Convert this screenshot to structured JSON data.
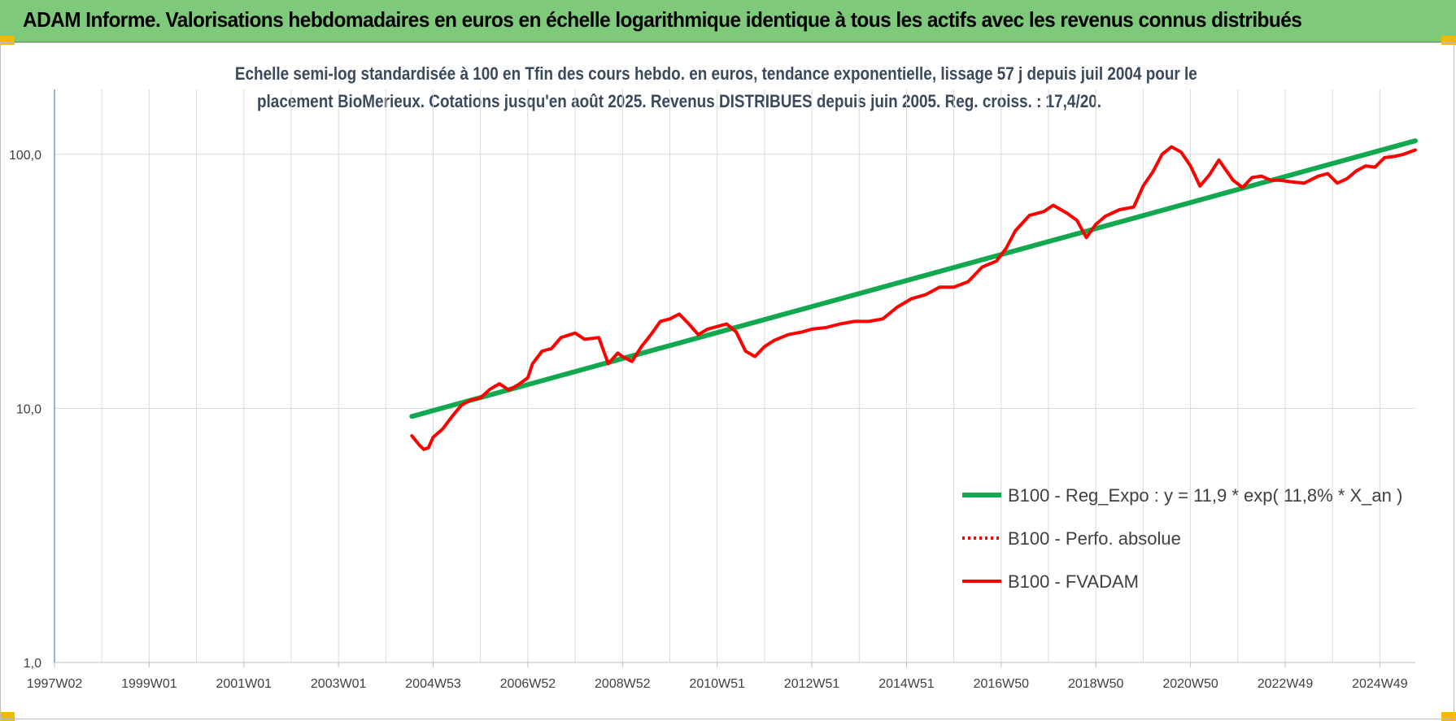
{
  "header": {
    "title": "ADAM Informe. Valorisations hebdomadaires en euros en échelle logarithmique identique à tous les actifs avec les revenus connus distribués"
  },
  "colors": {
    "banner": "#7fc97a",
    "trend": "#11a84f",
    "fvadam": "#ff0000",
    "perf": "#ff0000",
    "grid": "#d9d9d9",
    "axis": "#4f81bd"
  },
  "chart_data": {
    "type": "line",
    "title_lines": [
      "Echelle semi-log standardisée à 100 en Tfin des cours hebdo. en euros, tendance exponentielle, lissage 57 j depuis juil 2004 pour le",
      "placement BioMerieux. Cotations jusqu'en août 2025. Revenus DISTRIBUES depuis juin 2005. Reg. croiss. : 17,4/20."
    ],
    "y_scale": "log",
    "ylim": [
      1,
      180
    ],
    "xlim": [
      1997.0,
      2025.75
    ],
    "y_ticks": [
      {
        "value": 100,
        "label": "100,0"
      },
      {
        "value": 10,
        "label": "10,0"
      },
      {
        "value": 1,
        "label": "1,0"
      }
    ],
    "x_ticks": [
      {
        "x": 1997.0,
        "label": "1997W02"
      },
      {
        "x": 1999.0,
        "label": "1999W01"
      },
      {
        "x": 2001.0,
        "label": "2001W01"
      },
      {
        "x": 2003.0,
        "label": "2003W01"
      },
      {
        "x": 2005.0,
        "label": "2004W53"
      },
      {
        "x": 2007.0,
        "label": "2006W52"
      },
      {
        "x": 2009.0,
        "label": "2008W52"
      },
      {
        "x": 2011.0,
        "label": "2010W51"
      },
      {
        "x": 2013.0,
        "label": "2012W51"
      },
      {
        "x": 2015.0,
        "label": "2014W51"
      },
      {
        "x": 2017.0,
        "label": "2016W50"
      },
      {
        "x": 2019.0,
        "label": "2018W50"
      },
      {
        "x": 2021.0,
        "label": "2020W50"
      },
      {
        "x": 2023.0,
        "label": "2022W49"
      },
      {
        "x": 2025.0,
        "label": "2024W49"
      }
    ],
    "legend": {
      "position": "bottom-right"
    },
    "series": [
      {
        "name": "B100 - Reg_Expo : y = 11,9 * exp( 11,8% *  X_an )",
        "style": "solid-thick",
        "color": "#11a84f",
        "x": [
          2004.55,
          2025.75
        ],
        "y": [
          9.3,
          113
        ]
      },
      {
        "name": "B100 - Perfo. absolue",
        "style": "dotted",
        "color": "#ff0000",
        "x": [],
        "y": []
      },
      {
        "name": "B100 - FVADAM",
        "style": "solid",
        "color": "#ff0000",
        "x": [
          2004.55,
          2004.7,
          2004.8,
          2004.9,
          2005.0,
          2005.2,
          2005.4,
          2005.6,
          2005.8,
          2006.0,
          2006.2,
          2006.4,
          2006.6,
          2006.8,
          2007.0,
          2007.1,
          2007.3,
          2007.5,
          2007.7,
          2008.0,
          2008.2,
          2008.5,
          2008.7,
          2008.9,
          2009.0,
          2009.2,
          2009.4,
          2009.6,
          2009.8,
          2010.0,
          2010.2,
          2010.4,
          2010.6,
          2010.8,
          2011.0,
          2011.2,
          2011.4,
          2011.6,
          2011.8,
          2012.0,
          2012.2,
          2012.5,
          2012.8,
          2013.0,
          2013.3,
          2013.6,
          2013.9,
          2014.2,
          2014.5,
          2014.8,
          2015.1,
          2015.4,
          2015.7,
          2016.0,
          2016.3,
          2016.6,
          2016.9,
          2017.1,
          2017.3,
          2017.6,
          2017.9,
          2018.1,
          2018.4,
          2018.6,
          2018.8,
          2019.0,
          2019.2,
          2019.5,
          2019.8,
          2020.0,
          2020.2,
          2020.4,
          2020.6,
          2020.8,
          2021.0,
          2021.2,
          2021.4,
          2021.6,
          2021.9,
          2022.1,
          2022.3,
          2022.5,
          2022.7,
          2022.9,
          2023.1,
          2023.4,
          2023.7,
          2023.9,
          2024.1,
          2024.3,
          2024.5,
          2024.7,
          2024.9,
          2025.1,
          2025.3,
          2025.5,
          2025.75
        ],
        "y": [
          7.8,
          7.2,
          6.9,
          7.0,
          7.7,
          8.3,
          9.3,
          10.3,
          10.8,
          11.0,
          11.9,
          12.5,
          11.8,
          12.4,
          13.2,
          15.0,
          16.8,
          17.2,
          19.0,
          19.8,
          18.7,
          19.0,
          15.0,
          16.5,
          16.0,
          15.3,
          17.5,
          19.5,
          22.0,
          22.5,
          23.5,
          21.5,
          19.5,
          20.5,
          21.0,
          21.5,
          20.0,
          16.8,
          16.0,
          17.5,
          18.5,
          19.5,
          20.0,
          20.5,
          20.8,
          21.5,
          22.0,
          22.0,
          22.5,
          25.0,
          27.0,
          28.0,
          30.0,
          30.0,
          31.5,
          36.0,
          38.0,
          42.5,
          50.0,
          57.5,
          59.5,
          63.0,
          58.5,
          55.0,
          47.0,
          53.0,
          57.0,
          60.5,
          62.0,
          75.0,
          85.0,
          100.0,
          107.0,
          102.0,
          90.0,
          75.0,
          83.0,
          95.0,
          79.0,
          74.0,
          81.0,
          82.0,
          79.0,
          79.0,
          78.0,
          77.0,
          82.0,
          84.0,
          77.0,
          80.0,
          86.0,
          90.0,
          89.0,
          97.0,
          98.0,
          100.0,
          104.0
        ]
      }
    ]
  }
}
